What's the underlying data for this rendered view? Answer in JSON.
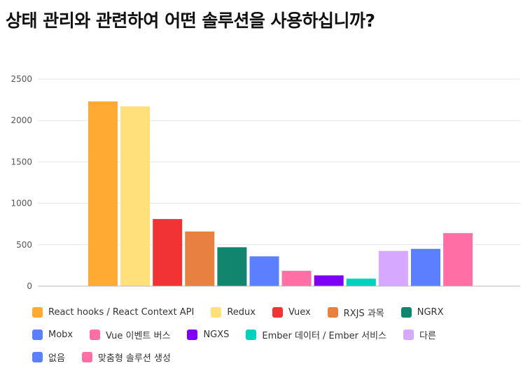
{
  "title": "상태 관리와 관련하여 어떤 솔루션을 사용하십니까?",
  "chart_data": {
    "type": "bar",
    "categories": [
      "React hooks / React Context API",
      "Redux",
      "Vuex",
      "RXJS 과목",
      "NGRX",
      "Mobx",
      "Vue 이벤트 버스",
      "NGXS",
      "Ember 데이터 / Ember 서비스",
      "다른",
      "없음",
      "맞춤형 솔루션 생성"
    ],
    "values": [
      2230,
      2170,
      810,
      660,
      470,
      360,
      185,
      130,
      90,
      425,
      450,
      640
    ],
    "colors": [
      "#FFAA33",
      "#FFE07A",
      "#F23333",
      "#E8803F",
      "#12856E",
      "#5B7FFF",
      "#FF6FA6",
      "#7E00F5",
      "#00D2BE",
      "#D6A8FF",
      "#5B7FFF",
      "#FF6FA6"
    ],
    "yticks": [
      0,
      500,
      1000,
      1500,
      2000,
      2500
    ],
    "ylim": [
      0,
      2500
    ],
    "grid": true,
    "legend_position": "bottom"
  }
}
